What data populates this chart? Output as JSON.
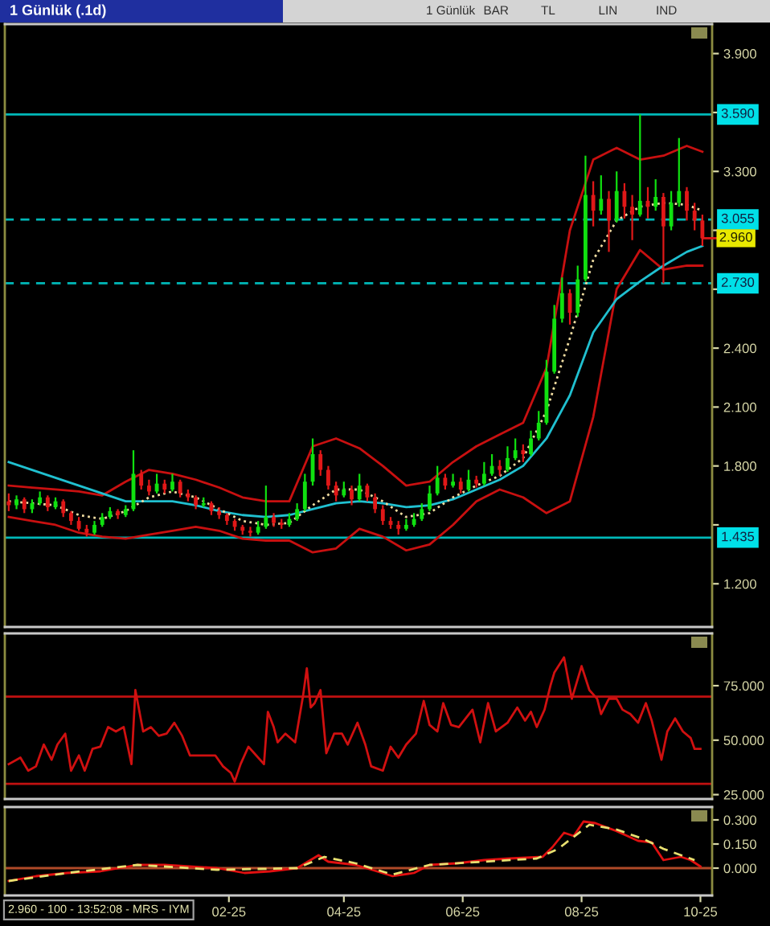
{
  "chart_data": [
    {
      "type": "candlestick",
      "title": "1 Günlük (.1d)",
      "x": [
        "2024-10-11",
        "2024-10-15",
        "2024-10-19",
        "2024-10-23",
        "2024-10-27",
        "2024-10-31",
        "2024-11-04",
        "2024-11-08",
        "2024-11-12",
        "2024-11-16",
        "2024-11-20",
        "2024-11-24",
        "2024-11-28",
        "2024-12-02",
        "2024-12-06",
        "2024-12-10",
        "2024-12-14",
        "2024-12-18",
        "2024-12-22",
        "2024-12-26",
        "2024-12-30",
        "2025-01-03",
        "2025-01-07",
        "2025-01-11",
        "2025-01-15",
        "2025-01-19",
        "2025-01-23",
        "2025-01-27",
        "2025-01-31",
        "2025-02-04",
        "2025-02-08",
        "2025-02-12",
        "2025-02-16",
        "2025-02-20",
        "2025-02-24",
        "2025-02-28",
        "2025-03-04",
        "2025-03-08",
        "2025-03-12",
        "2025-03-16",
        "2025-03-20",
        "2025-03-24",
        "2025-03-28",
        "2025-04-01",
        "2025-04-05",
        "2025-04-09",
        "2025-04-13",
        "2025-04-17",
        "2025-04-21",
        "2025-04-25",
        "2025-04-29",
        "2025-05-03",
        "2025-05-07",
        "2025-05-11",
        "2025-05-15",
        "2025-05-19",
        "2025-05-23",
        "2025-05-27",
        "2025-05-31",
        "2025-06-04",
        "2025-06-08",
        "2025-06-12",
        "2025-06-16",
        "2025-06-20",
        "2025-06-24",
        "2025-06-28",
        "2025-07-02",
        "2025-07-06",
        "2025-07-10",
        "2025-07-14",
        "2025-07-18",
        "2025-07-22",
        "2025-07-26",
        "2025-07-30",
        "2025-08-03",
        "2025-08-07",
        "2025-08-11",
        "2025-08-15",
        "2025-08-19",
        "2025-08-23",
        "2025-08-27",
        "2025-08-31",
        "2025-09-04",
        "2025-09-08",
        "2025-09-12",
        "2025-09-16",
        "2025-09-20",
        "2025-09-24",
        "2025-09-28",
        "2025-10-02"
      ],
      "ohlc": [
        [
          1.62,
          1.66,
          1.57,
          1.6
        ],
        [
          1.6,
          1.65,
          1.58,
          1.63
        ],
        [
          1.63,
          1.64,
          1.56,
          1.58
        ],
        [
          1.58,
          1.63,
          1.56,
          1.61
        ],
        [
          1.61,
          1.67,
          1.6,
          1.64
        ],
        [
          1.64,
          1.65,
          1.57,
          1.59
        ],
        [
          1.59,
          1.64,
          1.58,
          1.62
        ],
        [
          1.62,
          1.63,
          1.54,
          1.56
        ],
        [
          1.56,
          1.57,
          1.5,
          1.52
        ],
        [
          1.52,
          1.54,
          1.47,
          1.48
        ],
        [
          1.48,
          1.5,
          1.44,
          1.46
        ],
        [
          1.46,
          1.52,
          1.45,
          1.5
        ],
        [
          1.5,
          1.56,
          1.49,
          1.54
        ],
        [
          1.54,
          1.59,
          1.53,
          1.57
        ],
        [
          1.57,
          1.58,
          1.53,
          1.55
        ],
        [
          1.55,
          1.6,
          1.54,
          1.58
        ],
        [
          1.58,
          1.88,
          1.57,
          1.76
        ],
        [
          1.76,
          1.78,
          1.68,
          1.7
        ],
        [
          1.7,
          1.73,
          1.65,
          1.67
        ],
        [
          1.67,
          1.76,
          1.66,
          1.71
        ],
        [
          1.71,
          1.73,
          1.66,
          1.68
        ],
        [
          1.68,
          1.76,
          1.67,
          1.72
        ],
        [
          1.72,
          1.73,
          1.64,
          1.66
        ],
        [
          1.66,
          1.68,
          1.62,
          1.64
        ],
        [
          1.64,
          1.65,
          1.58,
          1.6
        ],
        [
          1.6,
          1.64,
          1.59,
          1.61
        ],
        [
          1.61,
          1.62,
          1.55,
          1.57
        ],
        [
          1.57,
          1.59,
          1.53,
          1.55
        ],
        [
          1.55,
          1.56,
          1.5,
          1.52
        ],
        [
          1.52,
          1.53,
          1.47,
          1.49
        ],
        [
          1.49,
          1.5,
          1.45,
          1.47
        ],
        [
          1.47,
          1.49,
          1.44,
          1.46
        ],
        [
          1.46,
          1.52,
          1.45,
          1.49
        ],
        [
          1.49,
          1.7,
          1.48,
          1.54
        ],
        [
          1.54,
          1.56,
          1.49,
          1.51
        ],
        [
          1.51,
          1.53,
          1.48,
          1.5
        ],
        [
          1.5,
          1.56,
          1.49,
          1.53
        ],
        [
          1.53,
          1.61,
          1.52,
          1.58
        ],
        [
          1.58,
          1.76,
          1.57,
          1.72
        ],
        [
          1.72,
          1.94,
          1.7,
          1.86
        ],
        [
          1.86,
          1.88,
          1.75,
          1.78
        ],
        [
          1.78,
          1.8,
          1.68,
          1.7
        ],
        [
          1.7,
          1.72,
          1.62,
          1.65
        ],
        [
          1.65,
          1.72,
          1.64,
          1.68
        ],
        [
          1.68,
          1.7,
          1.6,
          1.63
        ],
        [
          1.63,
          1.76,
          1.62,
          1.7
        ],
        [
          1.7,
          1.71,
          1.62,
          1.64
        ],
        [
          1.64,
          1.66,
          1.56,
          1.58
        ],
        [
          1.58,
          1.6,
          1.5,
          1.52
        ],
        [
          1.52,
          1.54,
          1.48,
          1.5
        ],
        [
          1.5,
          1.52,
          1.45,
          1.48
        ],
        [
          1.48,
          1.53,
          1.47,
          1.5
        ],
        [
          1.5,
          1.56,
          1.49,
          1.53
        ],
        [
          1.53,
          1.61,
          1.52,
          1.58
        ],
        [
          1.58,
          1.7,
          1.57,
          1.66
        ],
        [
          1.66,
          1.8,
          1.65,
          1.74
        ],
        [
          1.74,
          1.76,
          1.68,
          1.7
        ],
        [
          1.7,
          1.76,
          1.69,
          1.72
        ],
        [
          1.72,
          1.74,
          1.66,
          1.68
        ],
        [
          1.68,
          1.78,
          1.67,
          1.73
        ],
        [
          1.73,
          1.75,
          1.69,
          1.71
        ],
        [
          1.71,
          1.82,
          1.7,
          1.76
        ],
        [
          1.76,
          1.86,
          1.75,
          1.8
        ],
        [
          1.8,
          1.83,
          1.75,
          1.78
        ],
        [
          1.78,
          1.9,
          1.77,
          1.84
        ],
        [
          1.84,
          1.94,
          1.83,
          1.88
        ],
        [
          1.88,
          1.91,
          1.82,
          1.86
        ],
        [
          1.86,
          1.98,
          1.85,
          1.94
        ],
        [
          1.94,
          2.08,
          1.93,
          2.02
        ],
        [
          2.02,
          2.34,
          2.01,
          2.28
        ],
        [
          2.28,
          2.62,
          2.27,
          2.55
        ],
        [
          2.55,
          2.76,
          2.53,
          2.68
        ],
        [
          2.68,
          2.7,
          2.52,
          2.58
        ],
        [
          2.58,
          2.82,
          2.56,
          2.75
        ],
        [
          2.75,
          3.38,
          2.74,
          3.18
        ],
        [
          3.18,
          3.25,
          3.02,
          3.1
        ],
        [
          3.1,
          3.28,
          3.08,
          3.16
        ],
        [
          3.16,
          3.2,
          2.89,
          3.05
        ],
        [
          3.05,
          3.3,
          3.04,
          3.2
        ],
        [
          3.2,
          3.24,
          3.06,
          3.12
        ],
        [
          3.12,
          3.18,
          2.95,
          3.08
        ],
        [
          3.08,
          3.59,
          3.07,
          3.15
        ],
        [
          3.15,
          3.22,
          3.06,
          3.12
        ],
        [
          3.12,
          3.26,
          3.1,
          3.17
        ],
        [
          3.17,
          3.19,
          2.73,
          3.02
        ],
        [
          3.02,
          3.2,
          3.0,
          3.14
        ],
        [
          3.14,
          3.47,
          3.12,
          3.2
        ],
        [
          3.2,
          3.22,
          3.05,
          3.1
        ],
        [
          3.1,
          3.14,
          3.0,
          3.05
        ],
        [
          3.05,
          3.08,
          2.92,
          2.96
        ]
      ],
      "series": [
        {
          "type": "line",
          "color": "#c81010",
          "line_style": "solid",
          "x": [
            "2024-10-11",
            "2024-10-23",
            "2024-11-04",
            "2024-11-16",
            "2024-11-28",
            "2024-12-10",
            "2024-12-22",
            "2025-01-03",
            "2025-01-15",
            "2025-01-27",
            "2025-02-08",
            "2025-02-20",
            "2025-03-04",
            "2025-03-16",
            "2025-03-28",
            "2025-04-09",
            "2025-04-21",
            "2025-05-03",
            "2025-05-15",
            "2025-05-27",
            "2025-06-08",
            "2025-06-20",
            "2025-07-02",
            "2025-07-14",
            "2025-07-26",
            "2025-08-07",
            "2025-08-19",
            "2025-08-31",
            "2025-09-12",
            "2025-09-24",
            "2025-10-02"
          ],
          "values": [
            1.7,
            1.69,
            1.68,
            1.67,
            1.65,
            1.72,
            1.78,
            1.76,
            1.73,
            1.69,
            1.64,
            1.62,
            1.62,
            1.9,
            1.94,
            1.89,
            1.8,
            1.7,
            1.72,
            1.82,
            1.9,
            1.96,
            2.02,
            2.3,
            3.0,
            3.36,
            3.42,
            3.36,
            3.38,
            3.43,
            3.4
          ]
        },
        {
          "type": "line",
          "color": "#c81010",
          "line_style": "solid",
          "x": [
            "2024-10-11",
            "2024-10-23",
            "2024-11-04",
            "2024-11-16",
            "2024-11-28",
            "2024-12-10",
            "2024-12-22",
            "2025-01-03",
            "2025-01-15",
            "2025-01-27",
            "2025-02-08",
            "2025-02-20",
            "2025-03-04",
            "2025-03-16",
            "2025-03-28",
            "2025-04-09",
            "2025-04-21",
            "2025-05-03",
            "2025-05-15",
            "2025-05-27",
            "2025-06-08",
            "2025-06-20",
            "2025-07-02",
            "2025-07-14",
            "2025-07-26",
            "2025-08-07",
            "2025-08-19",
            "2025-08-31",
            "2025-09-12",
            "2025-09-24",
            "2025-10-02"
          ],
          "values": [
            1.54,
            1.52,
            1.5,
            1.46,
            1.44,
            1.43,
            1.45,
            1.47,
            1.49,
            1.47,
            1.43,
            1.42,
            1.42,
            1.36,
            1.38,
            1.48,
            1.44,
            1.37,
            1.4,
            1.5,
            1.62,
            1.68,
            1.64,
            1.56,
            1.62,
            2.05,
            2.7,
            2.9,
            2.8,
            2.82,
            2.82
          ]
        },
        {
          "type": "line",
          "color": "#20c0d0",
          "line_style": "solid",
          "x": [
            "2024-10-11",
            "2024-10-23",
            "2024-11-04",
            "2024-11-16",
            "2024-11-28",
            "2024-12-10",
            "2024-12-22",
            "2025-01-03",
            "2025-01-15",
            "2025-01-27",
            "2025-02-08",
            "2025-02-20",
            "2025-03-04",
            "2025-03-16",
            "2025-03-28",
            "2025-04-09",
            "2025-04-21",
            "2025-05-03",
            "2025-05-15",
            "2025-05-27",
            "2025-06-08",
            "2025-06-20",
            "2025-07-02",
            "2025-07-14",
            "2025-07-26",
            "2025-08-07",
            "2025-08-19",
            "2025-08-31",
            "2025-09-12",
            "2025-09-24",
            "2025-10-02"
          ],
          "values": [
            1.82,
            1.78,
            1.74,
            1.7,
            1.66,
            1.62,
            1.62,
            1.62,
            1.6,
            1.57,
            1.55,
            1.54,
            1.55,
            1.58,
            1.61,
            1.62,
            1.61,
            1.59,
            1.6,
            1.63,
            1.68,
            1.73,
            1.8,
            1.94,
            2.16,
            2.48,
            2.65,
            2.74,
            2.82,
            2.89,
            2.92
          ]
        },
        {
          "type": "line",
          "color": "#f0dca0",
          "line_style": "dotted",
          "x": [
            "2024-10-11",
            "2024-10-23",
            "2024-11-04",
            "2024-11-16",
            "2024-11-28",
            "2024-12-10",
            "2024-12-22",
            "2025-01-03",
            "2025-01-15",
            "2025-01-27",
            "2025-02-08",
            "2025-02-20",
            "2025-03-04",
            "2025-03-16",
            "2025-03-28",
            "2025-04-09",
            "2025-04-21",
            "2025-05-03",
            "2025-05-15",
            "2025-05-27",
            "2025-06-08",
            "2025-06-20",
            "2025-07-02",
            "2025-07-14",
            "2025-07-26",
            "2025-08-07",
            "2025-08-19",
            "2025-08-31",
            "2025-09-12",
            "2025-09-24",
            "2025-10-02"
          ],
          "values": [
            1.62,
            1.61,
            1.6,
            1.55,
            1.53,
            1.57,
            1.64,
            1.67,
            1.64,
            1.58,
            1.52,
            1.5,
            1.51,
            1.6,
            1.68,
            1.68,
            1.62,
            1.54,
            1.56,
            1.64,
            1.7,
            1.75,
            1.84,
            2.08,
            2.45,
            2.85,
            3.05,
            3.12,
            3.14,
            3.13,
            3.1
          ]
        }
      ],
      "xlim": [
        "2024-10-09",
        "2025-10-07"
      ],
      "ylim": [
        0.98,
        4.05
      ],
      "yticks": [
        {
          "value": 1.2,
          "label": "1.200"
        },
        {
          "value": 1.5,
          "label": null
        },
        {
          "value": 1.8,
          "label": "1.800"
        },
        {
          "value": 2.1,
          "label": "2.100"
        },
        {
          "value": 2.4,
          "label": "2.400"
        },
        {
          "value": 2.7,
          "label": null
        },
        {
          "value": 3.0,
          "label": null
        },
        {
          "value": 3.3,
          "label": "3.300"
        },
        {
          "value": 3.6,
          "label": null
        },
        {
          "value": 3.9,
          "label": "3.900"
        }
      ],
      "ref_lines": [
        {
          "axis": "y",
          "value": 3.59,
          "label": "3.590",
          "color": "#00b8b8",
          "line_style": "solid"
        },
        {
          "axis": "y",
          "value": 3.055,
          "label": "3.055",
          "color": "#00b8b8",
          "line_style": "dashed"
        },
        {
          "axis": "y",
          "value": 2.73,
          "label": "2.730",
          "color": "#00b8b8",
          "line_style": "dashed"
        },
        {
          "axis": "y",
          "value": 1.435,
          "label": "1.435",
          "color": "#00b8b8",
          "line_style": "solid"
        }
      ],
      "annotations": [
        {
          "text": "2.960",
          "x": "2025-10-02",
          "y": 2.96
        },
        "1 Günlük",
        "BAR",
        "TL",
        "LIN",
        "IND"
      ],
      "tick_labels": "y"
    },
    {
      "type": "line",
      "series": [
        {
          "color": "#d01010",
          "line_style": "solid",
          "x": [
            "2024-10-11",
            "2024-10-17",
            "2024-10-21",
            "2024-10-25",
            "2024-10-29",
            "2024-11-02",
            "2024-11-05",
            "2024-11-09",
            "2024-11-12",
            "2024-11-16",
            "2024-11-19",
            "2024-11-23",
            "2024-11-27",
            "2024-12-01",
            "2024-12-05",
            "2024-12-09",
            "2024-12-13",
            "2024-12-15",
            "2024-12-19",
            "2024-12-23",
            "2024-12-27",
            "2024-12-31",
            "2025-01-04",
            "2025-01-08",
            "2025-01-12",
            "2025-01-18",
            "2025-01-25",
            "2025-01-29",
            "2025-02-02",
            "2025-02-04",
            "2025-02-07",
            "2025-02-11",
            "2025-02-15",
            "2025-02-19",
            "2025-02-21",
            "2025-02-24",
            "2025-02-26",
            "2025-03-02",
            "2025-03-07",
            "2025-03-11",
            "2025-03-13",
            "2025-03-15",
            "2025-03-17",
            "2025-03-20",
            "2025-03-23",
            "2025-03-27",
            "2025-03-31",
            "2025-04-03",
            "2025-04-06",
            "2025-04-08",
            "2025-04-12",
            "2025-04-15",
            "2025-04-21",
            "2025-04-25",
            "2025-04-29",
            "2025-05-03",
            "2025-05-08",
            "2025-05-12",
            "2025-05-15",
            "2025-05-19",
            "2025-05-22",
            "2025-05-26",
            "2025-05-30",
            "2025-06-06",
            "2025-06-10",
            "2025-06-14",
            "2025-06-18",
            "2025-06-24",
            "2025-06-29",
            "2025-07-03",
            "2025-07-06",
            "2025-07-09",
            "2025-07-13",
            "2025-07-16",
            "2025-07-18",
            "2025-07-23",
            "2025-07-27",
            "2025-08-01",
            "2025-08-05",
            "2025-08-09",
            "2025-08-11",
            "2025-08-15",
            "2025-08-19",
            "2025-08-22",
            "2025-08-26",
            "2025-08-30",
            "2025-09-03",
            "2025-09-06",
            "2025-09-11",
            "2025-09-14",
            "2025-09-18",
            "2025-09-22",
            "2025-09-26",
            "2025-09-28",
            "2025-10-01"
          ],
          "values": [
            39,
            42,
            36,
            38,
            48,
            41,
            48,
            53,
            36,
            43,
            36,
            46,
            47,
            56,
            54,
            56,
            39,
            73,
            54,
            56,
            52,
            53,
            58,
            52,
            43,
            43,
            43,
            38,
            35,
            31,
            39,
            47,
            43,
            39,
            63,
            56,
            49,
            53,
            49,
            70,
            83,
            65,
            67,
            73,
            44,
            53,
            53,
            48,
            54,
            58,
            48,
            38,
            36,
            47,
            42,
            48,
            53,
            68,
            57,
            54,
            67,
            57,
            56,
            64,
            49,
            67,
            54,
            58,
            65,
            59,
            63,
            56,
            64,
            75,
            81,
            88,
            69,
            84,
            73,
            69,
            62,
            69,
            69,
            64,
            62,
            58,
            67,
            59,
            41,
            54,
            60,
            54,
            51,
            46,
            46
          ]
        }
      ],
      "xlim": [
        "2024-10-09",
        "2025-10-07"
      ],
      "ylim": [
        23,
        99
      ],
      "yticks": [
        {
          "value": 25,
          "label": "25.000"
        },
        {
          "value": 50,
          "label": "50.000"
        },
        {
          "value": 75,
          "label": "75.000"
        }
      ],
      "ref_lines": [
        {
          "axis": "y",
          "value": 70,
          "color": "#c01010",
          "line_style": "solid"
        },
        {
          "axis": "y",
          "value": 30,
          "color": "#c01010",
          "line_style": "solid"
        }
      ],
      "tick_labels": "y"
    },
    {
      "type": "line",
      "series": [
        {
          "color": "#e01010",
          "line_style": "solid",
          "x": [
            "2024-10-11",
            "2024-10-25",
            "2024-11-10",
            "2024-11-27",
            "2024-12-16",
            "2024-12-30",
            "2025-01-26",
            "2025-02-09",
            "2025-02-22",
            "2025-03-08",
            "2025-03-19",
            "2025-03-24",
            "2025-04-07",
            "2025-04-18",
            "2025-04-26",
            "2025-05-07",
            "2025-05-15",
            "2025-05-29",
            "2025-06-12",
            "2025-06-25",
            "2025-07-12",
            "2025-07-17",
            "2025-07-23",
            "2025-07-28",
            "2025-08-02",
            "2025-08-08",
            "2025-08-19",
            "2025-08-30",
            "2025-09-06",
            "2025-09-12",
            "2025-09-21",
            "2025-09-26",
            "2025-10-01"
          ],
          "values": [
            -0.08,
            -0.05,
            -0.03,
            -0.02,
            0.02,
            0.02,
            0.0,
            -0.03,
            -0.02,
            0.0,
            0.08,
            0.04,
            0.02,
            -0.02,
            -0.05,
            -0.03,
            0.02,
            0.03,
            0.05,
            0.06,
            0.07,
            0.13,
            0.22,
            0.2,
            0.29,
            0.28,
            0.23,
            0.17,
            0.16,
            0.05,
            0.07,
            0.05,
            0.01
          ]
        },
        {
          "color": "#e8e070",
          "line_style": "dashed",
          "x": [
            "2024-10-11",
            "2024-11-10",
            "2024-12-16",
            "2025-01-26",
            "2025-03-08",
            "2025-03-22",
            "2025-04-07",
            "2025-04-26",
            "2025-05-15",
            "2025-07-09",
            "2025-07-20",
            "2025-08-05",
            "2025-08-19",
            "2025-09-02",
            "2025-09-12",
            "2025-09-28"
          ],
          "values": [
            -0.08,
            -0.03,
            0.02,
            -0.01,
            0.0,
            0.07,
            0.03,
            -0.04,
            0.02,
            0.06,
            0.12,
            0.27,
            0.24,
            0.18,
            0.12,
            0.05
          ]
        }
      ],
      "xlim": [
        "2024-10-09",
        "2025-10-07"
      ],
      "ylim": [
        -0.17,
        0.38
      ],
      "yticks": [
        {
          "value": 0,
          "label": "0.000"
        },
        {
          "value": 0.15,
          "label": "0.150"
        },
        {
          "value": 0.3,
          "label": "0.300"
        }
      ],
      "xticks": [
        {
          "value": "2025-02-01",
          "label": "02-25"
        },
        {
          "value": "2025-04-01",
          "label": "04-25"
        },
        {
          "value": "2025-06-01",
          "label": "06-25"
        },
        {
          "value": "2025-08-01",
          "label": "08-25"
        },
        {
          "value": "2025-10-01",
          "label": "10-25"
        }
      ],
      "ref_lines": [
        {
          "axis": "y",
          "value": 0,
          "color": "#b04a28",
          "line_style": "solid"
        }
      ],
      "annotations": [
        "2.960 - 100 - 13:52:08 - MRS - IYM"
      ]
    }
  ]
}
